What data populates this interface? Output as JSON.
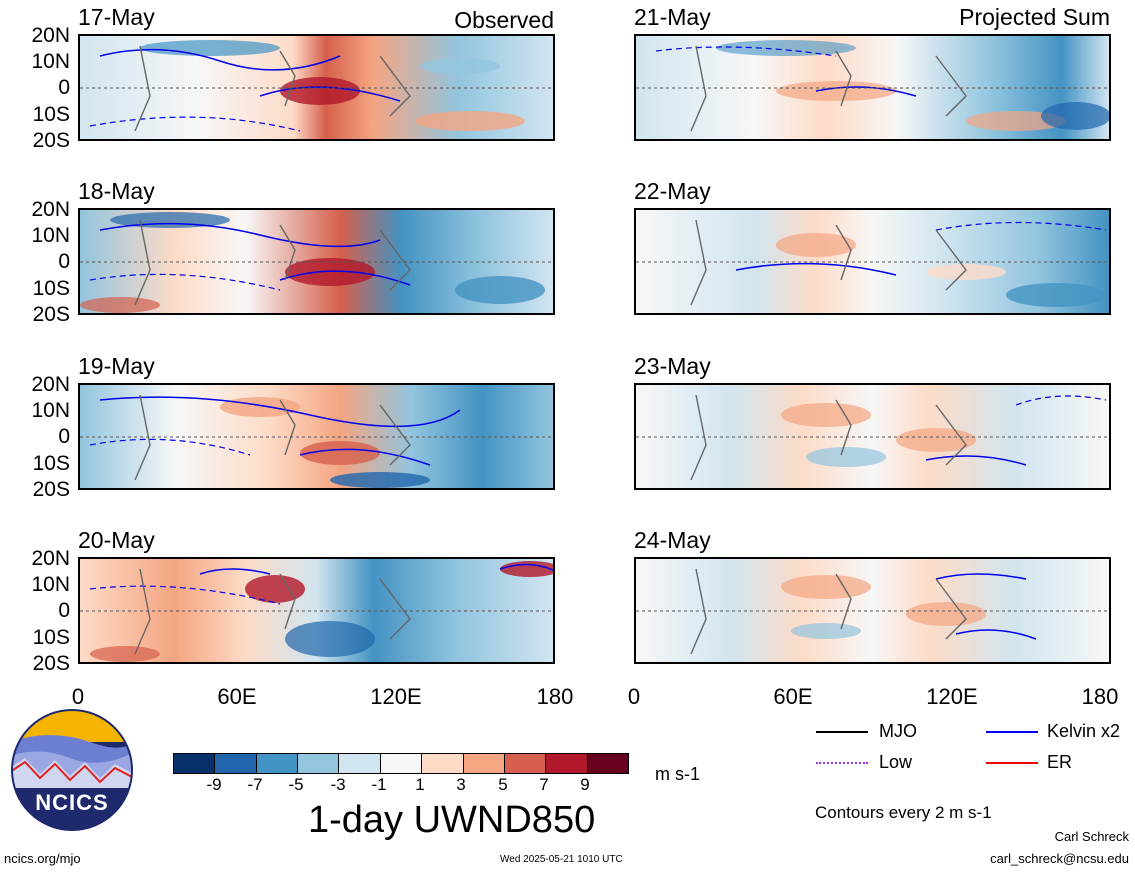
{
  "panels": {
    "left": [
      {
        "date": "17-May",
        "label": "Observed"
      },
      {
        "date": "18-May",
        "label": ""
      },
      {
        "date": "19-May",
        "label": ""
      },
      {
        "date": "20-May",
        "label": ""
      }
    ],
    "right": [
      {
        "date": "21-May",
        "label": "Projected Sum"
      },
      {
        "date": "22-May",
        "label": ""
      },
      {
        "date": "23-May",
        "label": ""
      },
      {
        "date": "24-May",
        "label": ""
      }
    ]
  },
  "lat_ticks": [
    "20N",
    "10N",
    "0",
    "10S",
    "20S"
  ],
  "lon_ticks": [
    "0",
    "60E",
    "120E",
    "180"
  ],
  "colorbar": {
    "labels": [
      "-9",
      "-7",
      "-5",
      "-3",
      "-1",
      "1",
      "3",
      "5",
      "7",
      "9"
    ],
    "colors": [
      "#08306b",
      "#2166ac",
      "#4393c3",
      "#92c5de",
      "#d1e5f0",
      "#f7f7f7",
      "#fddbc7",
      "#f4a582",
      "#d6604d",
      "#b2182b",
      "#67001f"
    ],
    "units": "m s-1",
    "title": "1-day UWND850"
  },
  "legend": {
    "items": [
      {
        "label": "MJO",
        "color": "#000000"
      },
      {
        "label": "Kelvin x2",
        "color": "#0000ee"
      },
      {
        "label": "Low",
        "color": "#9b30ff"
      },
      {
        "label": "ER",
        "color": "#ee0000"
      }
    ],
    "contour_note": "Contours every 2 m s-1"
  },
  "logo": {
    "text": "NCICS"
  },
  "footer": {
    "url": "ncics.org/mjo",
    "timestamp": "Wed 2025-05-21 1010 UTC",
    "author": "Carl Schreck",
    "email": "carl_schreck@ncsu.edu"
  }
}
